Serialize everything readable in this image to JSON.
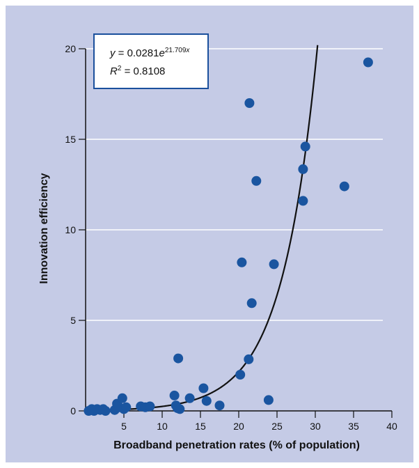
{
  "chart_data": {
    "type": "scatter",
    "title": "",
    "xlabel": "Broadband penetration rates (% of population)",
    "ylabel": "Innovation efficiency",
    "xlim": [
      0,
      40
    ],
    "ylim": [
      0,
      20
    ],
    "x_ticks": [
      "5",
      "10",
      "15",
      "20",
      "25",
      "30",
      "35",
      "40"
    ],
    "y_ticks": [
      "0",
      "5",
      "10",
      "15",
      "20"
    ],
    "grid": "horizontal",
    "marker_color": "#1a55a0",
    "background_color": "#c5cbe6",
    "points": [
      [
        0.4,
        0.0
      ],
      [
        0.8,
        0.1
      ],
      [
        1.1,
        0.0
      ],
      [
        1.5,
        0.1
      ],
      [
        1.9,
        0.05
      ],
      [
        2.3,
        0.1
      ],
      [
        2.6,
        0.0
      ],
      [
        3.8,
        0.05
      ],
      [
        4.1,
        0.4
      ],
      [
        4.4,
        0.2
      ],
      [
        4.8,
        0.7
      ],
      [
        5.0,
        0.1
      ],
      [
        5.3,
        0.2
      ],
      [
        7.2,
        0.25
      ],
      [
        7.8,
        0.2
      ],
      [
        8.4,
        0.25
      ],
      [
        11.6,
        0.85
      ],
      [
        11.8,
        0.3
      ],
      [
        12.0,
        0.15
      ],
      [
        12.1,
        2.9
      ],
      [
        12.3,
        0.1
      ],
      [
        13.6,
        0.7
      ],
      [
        15.4,
        1.25
      ],
      [
        15.8,
        0.55
      ],
      [
        17.5,
        0.3
      ],
      [
        20.2,
        2.0
      ],
      [
        20.4,
        8.2
      ],
      [
        21.3,
        2.85
      ],
      [
        21.4,
        17.0
      ],
      [
        21.7,
        5.95
      ],
      [
        22.3,
        12.7
      ],
      [
        23.9,
        0.6
      ],
      [
        24.6,
        8.1
      ],
      [
        28.4,
        13.35
      ],
      [
        28.4,
        11.6
      ],
      [
        28.7,
        14.6
      ],
      [
        33.8,
        12.4
      ],
      [
        36.9,
        19.25
      ]
    ],
    "trendline": {
      "equation_lhs": "y",
      "equation_mid": " = 0.0281",
      "equation_base": "e",
      "equation_exp": "21.709",
      "equation_exp_var": "x",
      "r2_label": "R",
      "r2_sup": "2",
      "r2_value": " = 0.8108"
    }
  }
}
